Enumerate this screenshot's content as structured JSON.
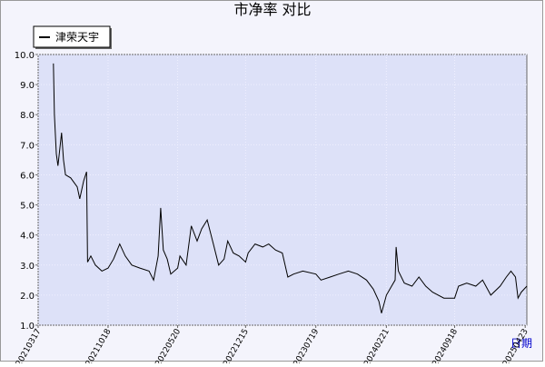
{
  "chart_data": {
    "type": "line",
    "title": "市净率 对比",
    "x_label": "日期",
    "series": [
      {
        "name": "津荣天宇",
        "color": "#000000",
        "x": [
          "20210503",
          "20210506",
          "20210512",
          "20210517",
          "20210528",
          "20210603",
          "20210609",
          "20210625",
          "20210715",
          "20210723",
          "20210804",
          "20210813",
          "20210816",
          "20210826",
          "20210909",
          "20210929",
          "20211018",
          "20211104",
          "20211123",
          "20211210",
          "20211230",
          "20220124",
          "20220221",
          "20220307",
          "20220321",
          "20220329",
          "20220406",
          "20220418",
          "20220429",
          "20220520",
          "20220527",
          "20220615",
          "20220701",
          "20220719",
          "20220802",
          "20220819",
          "20220907",
          "20220923",
          "20221010",
          "20221021",
          "20221107",
          "20221125",
          "20221215",
          "20221223",
          "20230113",
          "20230206",
          "20230224",
          "20230317",
          "20230407",
          "20230424",
          "20230512",
          "20230609",
          "20230719",
          "20230804",
          "20230901",
          "20230928",
          "20231027",
          "20231124",
          "20231222",
          "20240112",
          "20240129",
          "20240206",
          "20240221",
          "20240308",
          "20240319",
          "20240322",
          "20240329",
          "20240416",
          "20240510",
          "20240531",
          "20240621",
          "20240712",
          "20240816",
          "20240918",
          "20240930",
          "20241025",
          "20241122",
          "20241213",
          "20250107",
          "20250205",
          "20250224",
          "20250310",
          "20250324",
          "20250401",
          "20250411",
          "20250428"
        ],
        "values": [
          9.7,
          8.0,
          6.7,
          6.3,
          7.4,
          6.5,
          6.0,
          5.9,
          5.6,
          5.2,
          5.8,
          6.1,
          3.1,
          3.3,
          3.0,
          2.8,
          2.9,
          3.2,
          3.7,
          3.3,
          3.0,
          2.9,
          2.8,
          2.5,
          3.3,
          4.9,
          3.5,
          3.2,
          2.7,
          2.9,
          3.3,
          3.0,
          4.3,
          3.8,
          4.2,
          4.5,
          3.7,
          3.0,
          3.2,
          3.8,
          3.4,
          3.3,
          3.1,
          3.4,
          3.7,
          3.6,
          3.7,
          3.5,
          3.4,
          2.6,
          2.7,
          2.8,
          2.7,
          2.5,
          2.6,
          2.7,
          2.8,
          2.7,
          2.5,
          2.2,
          1.8,
          1.4,
          2.0,
          2.3,
          2.5,
          3.6,
          2.8,
          2.4,
          2.3,
          2.6,
          2.3,
          2.1,
          1.9,
          1.9,
          2.3,
          2.4,
          2.3,
          2.5,
          2.0,
          2.3,
          2.6,
          2.8,
          2.6,
          1.9,
          2.1,
          2.3
        ]
      }
    ],
    "xlim": [
      "20210317",
      "20250428"
    ],
    "xticks": [
      "20210317",
      "20211018",
      "20220520",
      "20221215",
      "20230719",
      "20240221",
      "20240918",
      "20250423"
    ],
    "ylim": [
      1,
      10
    ],
    "yticks": [
      {
        "value": 1,
        "label": "1.0"
      },
      {
        "value": 2,
        "label": "2.0"
      },
      {
        "value": 3,
        "label": "3.0"
      },
      {
        "value": 4,
        "label": "4.0"
      },
      {
        "value": 5,
        "label": "5.0"
      },
      {
        "value": 6,
        "label": "6.0"
      },
      {
        "value": 7,
        "label": "7.0"
      },
      {
        "value": 8,
        "label": "8.0"
      },
      {
        "value": 9,
        "label": "9.0"
      },
      {
        "value": 10,
        "label": "10.0"
      }
    ],
    "grid": true
  }
}
